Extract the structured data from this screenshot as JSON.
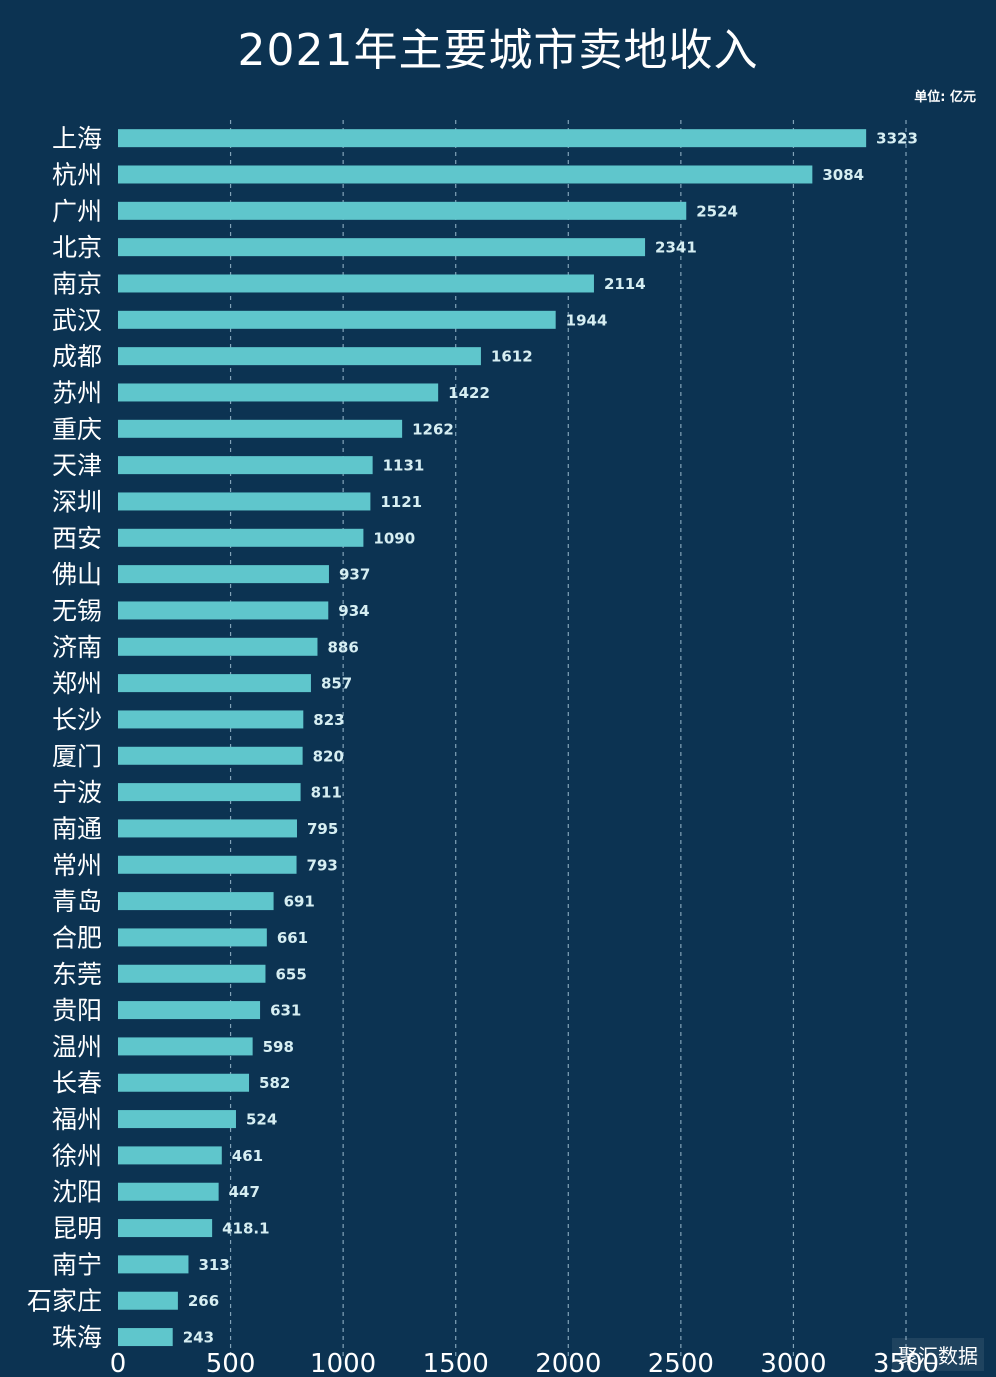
{
  "title": "2021年主要城市卖地收入",
  "unit_label": "单位: 亿元",
  "watermark": "聚汇数据",
  "colors": {
    "background": "#0c3352",
    "bar": "#5fc6cc",
    "text": "#ffffff",
    "value_text": "#d6eef2",
    "grid": "#8fb0c4"
  },
  "chart_data": {
    "type": "bar",
    "orientation": "horizontal",
    "title": "2021年主要城市卖地收入",
    "unit": "单位: 亿元",
    "categories": [
      "上海",
      "杭州",
      "广州",
      "北京",
      "南京",
      "武汉",
      "成都",
      "苏州",
      "重庆",
      "天津",
      "深圳",
      "西安",
      "佛山",
      "无锡",
      "济南",
      "郑州",
      "长沙",
      "厦门",
      "宁波",
      "南通",
      "常州",
      "青岛",
      "合肥",
      "东莞",
      "贵阳",
      "温州",
      "长春",
      "福州",
      "徐州",
      "沈阳",
      "昆明",
      "南宁",
      "石家庄",
      "珠海"
    ],
    "values": [
      3323,
      3084,
      2524,
      2341,
      2114,
      1944,
      1612,
      1422,
      1262,
      1131,
      1121,
      1090,
      937,
      934,
      886,
      857,
      823,
      820,
      811,
      795,
      793,
      691,
      661,
      655,
      631,
      598,
      582,
      524,
      461,
      447,
      418.1,
      313,
      266,
      243
    ],
    "value_labels": [
      "3323",
      "3084",
      "2524",
      "2341",
      "2114",
      "1944",
      "1612",
      "1422",
      "1262",
      "1131",
      "1121",
      "1090",
      "937",
      "934",
      "886",
      "857",
      "823",
      "820",
      "811",
      "795",
      "793",
      "691",
      "661",
      "655",
      "631",
      "598",
      "582",
      "524",
      "461",
      "447",
      "418.1",
      "313",
      "266",
      "243"
    ],
    "xlim": [
      0,
      3500
    ],
    "xticks": [
      0,
      500,
      1000,
      1500,
      2000,
      2500,
      3000,
      3500
    ],
    "xtick_labels": [
      "0",
      "500",
      "1000",
      "1500",
      "2000",
      "2500",
      "3000",
      "3500"
    ],
    "grid": "vertical dashed",
    "legend": "none"
  }
}
